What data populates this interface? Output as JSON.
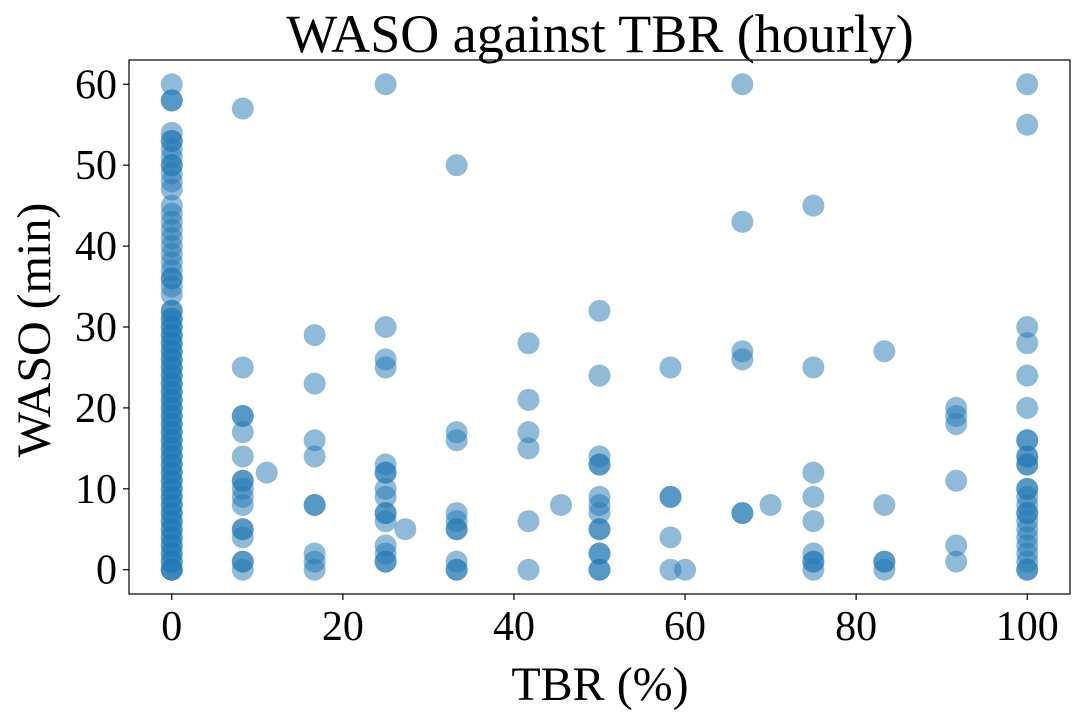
{
  "chart_data": {
    "type": "scatter",
    "title": "WASO against TBR (hourly)",
    "xlabel": "TBR (%)",
    "ylabel": "WASO (min)",
    "xlim": [
      -5,
      105
    ],
    "ylim": [
      -3,
      63
    ],
    "xticks": [
      0,
      20,
      40,
      60,
      80,
      100
    ],
    "yticks": [
      0,
      10,
      20,
      30,
      40,
      50,
      60
    ],
    "grid": false,
    "legend": "none",
    "color": "#1f77b4",
    "alpha": 0.5,
    "points": [
      [
        0,
        0
      ],
      [
        0,
        0
      ],
      [
        0,
        0
      ],
      [
        0,
        1
      ],
      [
        0,
        1
      ],
      [
        0,
        2
      ],
      [
        0,
        2
      ],
      [
        0,
        3
      ],
      [
        0,
        3
      ],
      [
        0,
        4
      ],
      [
        0,
        4
      ],
      [
        0,
        5
      ],
      [
        0,
        5
      ],
      [
        0,
        6
      ],
      [
        0,
        6
      ],
      [
        0,
        7
      ],
      [
        0,
        7
      ],
      [
        0,
        8
      ],
      [
        0,
        8
      ],
      [
        0,
        9
      ],
      [
        0,
        9
      ],
      [
        0,
        10
      ],
      [
        0,
        10
      ],
      [
        0,
        11
      ],
      [
        0,
        11
      ],
      [
        0,
        12
      ],
      [
        0,
        12
      ],
      [
        0,
        13
      ],
      [
        0,
        13
      ],
      [
        0,
        14
      ],
      [
        0,
        14
      ],
      [
        0,
        15
      ],
      [
        0,
        15
      ],
      [
        0,
        16
      ],
      [
        0,
        16
      ],
      [
        0,
        17
      ],
      [
        0,
        17
      ],
      [
        0,
        18
      ],
      [
        0,
        18
      ],
      [
        0,
        19
      ],
      [
        0,
        19
      ],
      [
        0,
        20
      ],
      [
        0,
        20
      ],
      [
        0,
        21
      ],
      [
        0,
        21
      ],
      [
        0,
        22
      ],
      [
        0,
        22
      ],
      [
        0,
        23
      ],
      [
        0,
        23
      ],
      [
        0,
        24
      ],
      [
        0,
        24
      ],
      [
        0,
        25
      ],
      [
        0,
        25
      ],
      [
        0,
        26
      ],
      [
        0,
        26
      ],
      [
        0,
        27
      ],
      [
        0,
        27
      ],
      [
        0,
        28
      ],
      [
        0,
        28
      ],
      [
        0,
        29
      ],
      [
        0,
        29
      ],
      [
        0,
        30
      ],
      [
        0,
        30
      ],
      [
        0,
        31
      ],
      [
        0,
        31
      ],
      [
        0,
        32
      ],
      [
        0,
        32
      ],
      [
        0,
        34
      ],
      [
        0,
        35
      ],
      [
        0,
        36
      ],
      [
        0,
        36
      ],
      [
        0,
        37
      ],
      [
        0,
        38
      ],
      [
        0,
        39
      ],
      [
        0,
        40
      ],
      [
        0,
        41
      ],
      [
        0,
        42
      ],
      [
        0,
        43
      ],
      [
        0,
        44
      ],
      [
        0,
        45
      ],
      [
        0,
        47
      ],
      [
        0,
        48
      ],
      [
        0,
        49
      ],
      [
        0,
        50
      ],
      [
        0,
        50
      ],
      [
        0,
        51
      ],
      [
        0,
        52
      ],
      [
        0,
        53
      ],
      [
        0,
        53
      ],
      [
        0,
        54
      ],
      [
        0,
        58
      ],
      [
        0,
        58
      ],
      [
        0,
        60
      ],
      [
        8.3,
        0
      ],
      [
        8.3,
        1
      ],
      [
        8.3,
        1
      ],
      [
        8.3,
        4
      ],
      [
        8.3,
        5
      ],
      [
        8.3,
        5
      ],
      [
        8.3,
        8
      ],
      [
        8.3,
        9
      ],
      [
        8.3,
        10
      ],
      [
        8.3,
        11
      ],
      [
        8.3,
        11
      ],
      [
        8.3,
        14
      ],
      [
        8.3,
        17
      ],
      [
        8.3,
        19
      ],
      [
        8.3,
        19
      ],
      [
        8.3,
        25
      ],
      [
        8.3,
        57
      ],
      [
        11.1,
        12
      ],
      [
        16.7,
        0
      ],
      [
        16.7,
        1
      ],
      [
        16.7,
        2
      ],
      [
        16.7,
        8
      ],
      [
        16.7,
        8
      ],
      [
        16.7,
        14
      ],
      [
        16.7,
        16
      ],
      [
        16.7,
        23
      ],
      [
        16.7,
        29
      ],
      [
        25,
        1
      ],
      [
        25,
        1
      ],
      [
        25,
        2
      ],
      [
        25,
        3
      ],
      [
        25,
        6
      ],
      [
        25,
        7
      ],
      [
        25,
        7
      ],
      [
        25,
        9
      ],
      [
        25,
        10
      ],
      [
        25,
        12
      ],
      [
        25,
        12
      ],
      [
        25,
        13
      ],
      [
        25,
        25
      ],
      [
        25,
        26
      ],
      [
        25,
        30
      ],
      [
        25,
        60
      ],
      [
        27.3,
        5
      ],
      [
        33.3,
        0
      ],
      [
        33.3,
        0
      ],
      [
        33.3,
        1
      ],
      [
        33.3,
        5
      ],
      [
        33.3,
        5
      ],
      [
        33.3,
        6
      ],
      [
        33.3,
        7
      ],
      [
        33.3,
        16
      ],
      [
        33.3,
        17
      ],
      [
        33.3,
        50
      ],
      [
        41.7,
        0
      ],
      [
        41.7,
        6
      ],
      [
        41.7,
        15
      ],
      [
        41.7,
        17
      ],
      [
        41.7,
        21
      ],
      [
        41.7,
        28
      ],
      [
        45.5,
        8
      ],
      [
        50,
        0
      ],
      [
        50,
        0
      ],
      [
        50,
        2
      ],
      [
        50,
        2
      ],
      [
        50,
        5
      ],
      [
        50,
        5
      ],
      [
        50,
        7
      ],
      [
        50,
        8
      ],
      [
        50,
        9
      ],
      [
        50,
        13
      ],
      [
        50,
        13
      ],
      [
        50,
        14
      ],
      [
        50,
        24
      ],
      [
        50,
        32
      ],
      [
        58.3,
        0
      ],
      [
        58.3,
        4
      ],
      [
        58.3,
        9
      ],
      [
        58.3,
        9
      ],
      [
        58.3,
        25
      ],
      [
        60,
        0
      ],
      [
        66.7,
        7
      ],
      [
        66.7,
        7
      ],
      [
        66.7,
        26
      ],
      [
        66.7,
        27
      ],
      [
        66.7,
        43
      ],
      [
        66.7,
        60
      ],
      [
        70,
        8
      ],
      [
        75,
        0
      ],
      [
        75,
        1
      ],
      [
        75,
        1
      ],
      [
        75,
        2
      ],
      [
        75,
        6
      ],
      [
        75,
        9
      ],
      [
        75,
        12
      ],
      [
        75,
        25
      ],
      [
        75,
        45
      ],
      [
        83.3,
        0
      ],
      [
        83.3,
        1
      ],
      [
        83.3,
        1
      ],
      [
        83.3,
        8
      ],
      [
        83.3,
        27
      ],
      [
        91.7,
        1
      ],
      [
        91.7,
        3
      ],
      [
        91.7,
        11
      ],
      [
        91.7,
        18
      ],
      [
        91.7,
        19
      ],
      [
        91.7,
        20
      ],
      [
        100,
        0
      ],
      [
        100,
        0
      ],
      [
        100,
        1
      ],
      [
        100,
        2
      ],
      [
        100,
        3
      ],
      [
        100,
        4
      ],
      [
        100,
        5
      ],
      [
        100,
        6
      ],
      [
        100,
        7
      ],
      [
        100,
        7
      ],
      [
        100,
        8
      ],
      [
        100,
        9
      ],
      [
        100,
        10
      ],
      [
        100,
        10
      ],
      [
        100,
        13
      ],
      [
        100,
        13
      ],
      [
        100,
        14
      ],
      [
        100,
        14
      ],
      [
        100,
        16
      ],
      [
        100,
        16
      ],
      [
        100,
        20
      ],
      [
        100,
        24
      ],
      [
        100,
        28
      ],
      [
        100,
        30
      ],
      [
        100,
        55
      ],
      [
        100,
        60
      ]
    ]
  }
}
